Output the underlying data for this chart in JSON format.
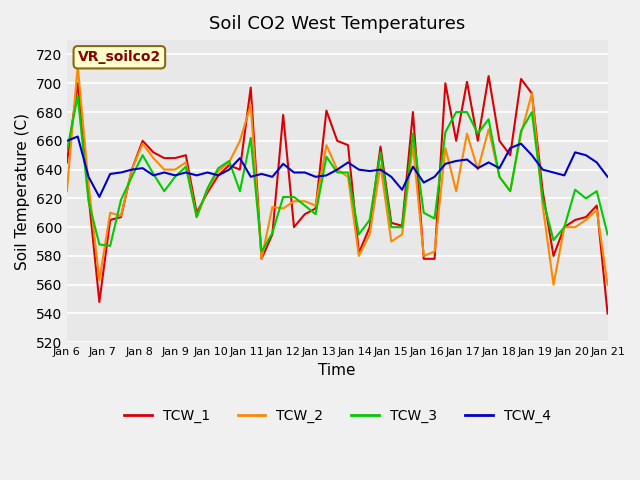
{
  "title": "Soil CO2 West Temperatures",
  "ylabel": "Soil Temperature (C)",
  "xlabel": "Time",
  "annotation": "VR_soilco2",
  "ylim": [
    520,
    730
  ],
  "yticks": [
    520,
    540,
    560,
    580,
    600,
    620,
    640,
    660,
    680,
    700,
    720
  ],
  "xtick_labels": [
    "Jan 6",
    "Jan 7",
    "Jan 8",
    "Jan 9",
    "Jan 10",
    "Jan 11",
    "Jan 12",
    "Jan 13",
    "Jan 14",
    "Jan 15",
    "Jan 16",
    "Jan 17",
    "Jan 18",
    "Jan 19",
    "Jan 20",
    "Jan 21"
  ],
  "background_color": "#e8e8e8",
  "grid_color": "#ffffff",
  "series": {
    "TCW_1": {
      "color": "#dd0000",
      "data": [
        645,
        700,
        622,
        548,
        605,
        607,
        640,
        660,
        652,
        648,
        648,
        650,
        610,
        624,
        636,
        643,
        640,
        697,
        578,
        595,
        678,
        600,
        609,
        613,
        681,
        660,
        657,
        582,
        600,
        656,
        603,
        601,
        680,
        578,
        578,
        700,
        660,
        701,
        660,
        705,
        660,
        650,
        703,
        693,
        625,
        580,
        600,
        605,
        607,
        615,
        540
      ]
    },
    "TCW_2": {
      "color": "#ff8800",
      "data": [
        625,
        712,
        630,
        563,
        610,
        608,
        640,
        658,
        648,
        640,
        640,
        645,
        607,
        626,
        639,
        645,
        660,
        685,
        578,
        614,
        613,
        618,
        618,
        615,
        657,
        640,
        635,
        580,
        595,
        643,
        590,
        595,
        657,
        580,
        583,
        655,
        625,
        665,
        640,
        668,
        635,
        625,
        665,
        693,
        615,
        560,
        600,
        600,
        605,
        612,
        560
      ]
    },
    "TCW_3": {
      "color": "#00cc00",
      "data": [
        653,
        691,
        618,
        588,
        587,
        619,
        635,
        650,
        637,
        625,
        635,
        642,
        607,
        627,
        641,
        646,
        625,
        662,
        583,
        596,
        621,
        621,
        615,
        609,
        649,
        638,
        638,
        595,
        605,
        652,
        600,
        600,
        665,
        610,
        606,
        666,
        680,
        680,
        665,
        675,
        635,
        625,
        667,
        680,
        620,
        591,
        600,
        626,
        620,
        625,
        595
      ]
    },
    "TCW_4": {
      "color": "#0000cc",
      "data": [
        660,
        663,
        635,
        621,
        637,
        638,
        640,
        641,
        636,
        638,
        636,
        638,
        636,
        638,
        636,
        640,
        648,
        635,
        637,
        635,
        644,
        638,
        638,
        635,
        636,
        640,
        645,
        640,
        639,
        640,
        635,
        626,
        642,
        631,
        635,
        644,
        646,
        647,
        641,
        645,
        641,
        655,
        658,
        650,
        640,
        638,
        636,
        652,
        650,
        645,
        635
      ]
    }
  },
  "legend": [
    {
      "label": "TCW_1",
      "color": "#dd0000"
    },
    {
      "label": "TCW_2",
      "color": "#ff8800"
    },
    {
      "label": "TCW_3",
      "color": "#00cc00"
    },
    {
      "label": "TCW_4",
      "color": "#0000cc"
    }
  ]
}
